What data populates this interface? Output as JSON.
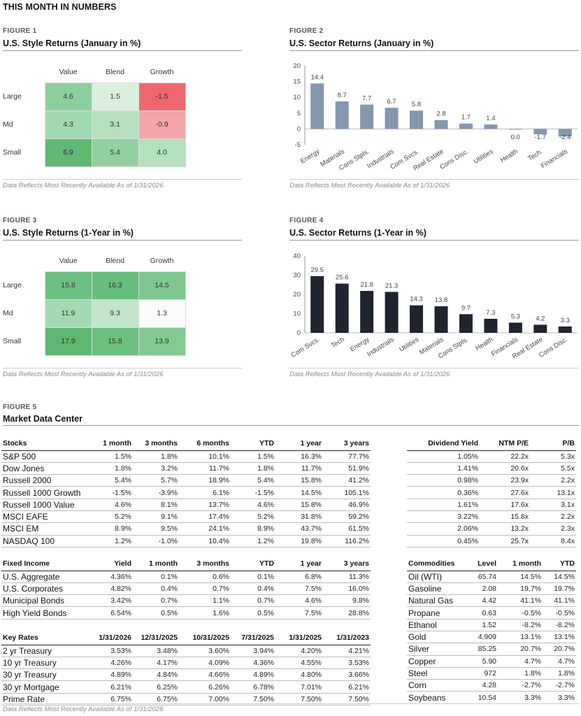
{
  "page_title": "THIS MONTH IN NUMBERS",
  "footnote": "Data Reflects Most Recently Available As of 1/31/2026",
  "fig1": {
    "label": "FIGURE 1",
    "title": "U.S. Style Returns (January in %)",
    "cols": [
      "Value",
      "Blend",
      "Growth"
    ],
    "rows": [
      "Large",
      "Md",
      "Small"
    ],
    "values": [
      [
        "4.6",
        "1.5",
        "-1.5"
      ],
      [
        "4.3",
        "3.1",
        "-0.9"
      ],
      [
        "6.9",
        "5.4",
        "4.0"
      ]
    ],
    "colors": [
      [
        "#8ccf9b",
        "#daf0de",
        "#f0676b"
      ],
      [
        "#a2d8ad",
        "#b4e0bc",
        "#f5a5a7"
      ],
      [
        "#5fb973",
        "#92d09f",
        "#b4e0bd"
      ]
    ]
  },
  "fig3": {
    "label": "FIGURE 3",
    "title": "U.S. Style Returns (1-Year in %)",
    "cols": [
      "Value",
      "Blend",
      "Growth"
    ],
    "rows": [
      "Large",
      "Md",
      "Small"
    ],
    "values": [
      [
        "15.8",
        "16.3",
        "14.5"
      ],
      [
        "11.9",
        "9.3",
        "1.3"
      ],
      [
        "17.9",
        "15.8",
        "13.9"
      ]
    ],
    "colors": [
      [
        "#6cc07f",
        "#67be7b",
        "#7ec88f"
      ],
      [
        "#a6d9b1",
        "#c2e6c9",
        "#fbfdfb"
      ],
      [
        "#5eb872",
        "#6cc07f",
        "#82ca92"
      ]
    ]
  },
  "fig2": {
    "label": "FIGURE 2",
    "title": "U.S. Sector Returns (January in %)"
  },
  "fig4": {
    "label": "FIGURE 4",
    "title": "U.S. Sector Returns (1-Year in %)"
  },
  "chart_data": [
    {
      "type": "bar",
      "title": "U.S. Sector Returns (January in %)",
      "categories": [
        "Energy",
        "Materials",
        "Cons Stpls.",
        "Industrials",
        "Com Svcs.",
        "Real Estate",
        "Cons Disc.",
        "Utilities",
        "Health",
        "Tech.",
        "Financials"
      ],
      "values": [
        14.4,
        8.7,
        7.7,
        6.7,
        5.8,
        2.8,
        1.7,
        1.4,
        0.0,
        -1.7,
        -2.4
      ],
      "labels": [
        "14.4",
        "8.7",
        "7.7",
        "6.7",
        "5.8",
        "2.8",
        "1.7",
        "1.4",
        "0.0",
        "-1.7",
        "-2.4"
      ],
      "ylim": [
        -5,
        20
      ],
      "ticks": [
        20,
        15,
        10,
        5,
        0,
        -5
      ],
      "color": "#8497b0",
      "xlabel": "",
      "ylabel": ""
    },
    {
      "type": "bar",
      "title": "U.S. Sector Returns (1-Year in %)",
      "categories": [
        "Com Svcs.",
        "Tech",
        "Energy",
        "Industrials",
        "Utilities",
        "Materials",
        "Cons Stpls.",
        "Health",
        "Financials",
        "Real Estate",
        "Cons Disc."
      ],
      "values": [
        29.5,
        25.6,
        21.8,
        21.3,
        14.3,
        13.8,
        9.7,
        7.3,
        5.3,
        4.2,
        3.3
      ],
      "labels": [
        "29.5",
        "25.6",
        "21.8",
        "21.3",
        "14.3",
        "13.8",
        "9.7",
        "7.3",
        "5.3",
        "4.2",
        "3.3"
      ],
      "ylim": [
        0,
        40
      ],
      "ticks": [
        40,
        30,
        20,
        10,
        0
      ],
      "color": "#1f2430",
      "xlabel": "",
      "ylabel": ""
    }
  ],
  "fig5": {
    "label": "FIGURE 5",
    "title": "Market Data Center",
    "stocks": {
      "headers": [
        "Stocks",
        "1 month",
        "3 months",
        "6 months",
        "YTD",
        "1 year",
        "3 years"
      ],
      "rows": [
        [
          "S&P 500",
          "1.5%",
          "1.8%",
          "10.1%",
          "1.5%",
          "16.3%",
          "77.7%"
        ],
        [
          "Dow Jones",
          "1.8%",
          "3.2%",
          "11.7%",
          "1.8%",
          "11.7%",
          "51.9%"
        ],
        [
          "Russell 2000",
          "5.4%",
          "5.7%",
          "18.9%",
          "5.4%",
          "15.8%",
          "41.2%"
        ],
        [
          "Russell 1000 Growth",
          "-1.5%",
          "-3.9%",
          "6.1%",
          "-1.5%",
          "14.5%",
          "105.1%"
        ],
        [
          "Russell 1000 Value",
          "4.6%",
          "8.1%",
          "13.7%",
          "4.6%",
          "15.8%",
          "46.9%"
        ],
        [
          "MSCI EAFE",
          "5.2%",
          "9.1%",
          "17.4%",
          "5.2%",
          "31.8%",
          "59.2%"
        ],
        [
          "MSCI EM",
          "8.9%",
          "9.5%",
          "24.1%",
          "8.9%",
          "43.7%",
          "61.5%"
        ],
        [
          "NASDAQ 100",
          "1.2%",
          "-1.0%",
          "10.4%",
          "1.2%",
          "19.8%",
          "116.2%"
        ]
      ]
    },
    "dividend": {
      "headers": [
        "Dividend Yield",
        "NTM P/E",
        "P/B"
      ],
      "rows": [
        [
          "1.05%",
          "22.2x",
          "5.3x"
        ],
        [
          "1.41%",
          "20.6x",
          "5.5x"
        ],
        [
          "0.98%",
          "23.9x",
          "2.2x"
        ],
        [
          "0.36%",
          "27.6x",
          "13.1x"
        ],
        [
          "1.61%",
          "17.6x",
          "3.1x"
        ],
        [
          "3.22%",
          "15.8x",
          "2.2x"
        ],
        [
          "2.06%",
          "13.2x",
          "2.3x"
        ],
        [
          "0.45%",
          "25.7x",
          "8.4x"
        ]
      ]
    },
    "fixed": {
      "headers": [
        "Fixed Income",
        "Yield",
        "1 month",
        "3 months",
        "YTD",
        "1 year",
        "3 years"
      ],
      "rows": [
        [
          "U.S. Aggregate",
          "4.36%",
          "0.1%",
          "0.6%",
          "0.1%",
          "6.8%",
          "11.3%"
        ],
        [
          "U.S. Corporates",
          "4.82%",
          "0.4%",
          "0.7%",
          "0.4%",
          "7.5%",
          "16.0%"
        ],
        [
          "Municipal Bonds",
          "3.42%",
          "0.7%",
          "1.1%",
          "0.7%",
          "4.6%",
          "9.8%"
        ],
        [
          "High Yield Bonds",
          "6.54%",
          "0.5%",
          "1.6%",
          "0.5%",
          "7.5%",
          "28.8%"
        ]
      ]
    },
    "rates": {
      "headers": [
        "Key Rates",
        "1/31/2026",
        "12/31/2025",
        "10/31/2025",
        "7/31/2025",
        "1/31/2025",
        "1/31/2023"
      ],
      "rows": [
        [
          "2 yr Treasury",
          "3.53%",
          "3.48%",
          "3.60%",
          "3.94%",
          "4.20%",
          "4.21%"
        ],
        [
          "10 yr Treasury",
          "4.26%",
          "4.17%",
          "4.09%",
          "4.36%",
          "4.55%",
          "3.53%"
        ],
        [
          "30 yr Treasury",
          "4.89%",
          "4.84%",
          "4.66%",
          "4.89%",
          "4.80%",
          "3.66%"
        ],
        [
          "30 yr Mortgage",
          "6.21%",
          "6.25%",
          "6.26%",
          "6.78%",
          "7.01%",
          "6.21%"
        ],
        [
          "Prime Rate",
          "6.75%",
          "6.75%",
          "7.00%",
          "7.50%",
          "7.50%",
          "7.50%"
        ]
      ]
    },
    "commodities": {
      "headers": [
        "Commodities",
        "Level",
        "1 month",
        "YTD"
      ],
      "rows": [
        [
          "Oil (WTI)",
          "65.74",
          "14.5%",
          "14.5%"
        ],
        [
          "Gasoline",
          "2.08",
          "19.7%",
          "19.7%"
        ],
        [
          "Natural Gas",
          "4.42",
          "41.1%",
          "41.1%"
        ],
        [
          "Propane",
          "0.63",
          "-0.5%",
          "-0.5%"
        ],
        [
          "Ethanol",
          "1.52",
          "-8.2%",
          "-8.2%"
        ],
        [
          "Gold",
          "4,909",
          "13.1%",
          "13.1%"
        ],
        [
          "Silver",
          "85.25",
          "20.7%",
          "20.7%"
        ],
        [
          "Copper",
          "5.90",
          "4.7%",
          "4.7%"
        ],
        [
          "Steel",
          "972",
          "1.8%",
          "1.8%"
        ],
        [
          "Corn",
          "4.28",
          "-2.7%",
          "-2.7%"
        ],
        [
          "Soybeans",
          "10.54",
          "3.3%",
          "3.3%"
        ]
      ]
    }
  }
}
